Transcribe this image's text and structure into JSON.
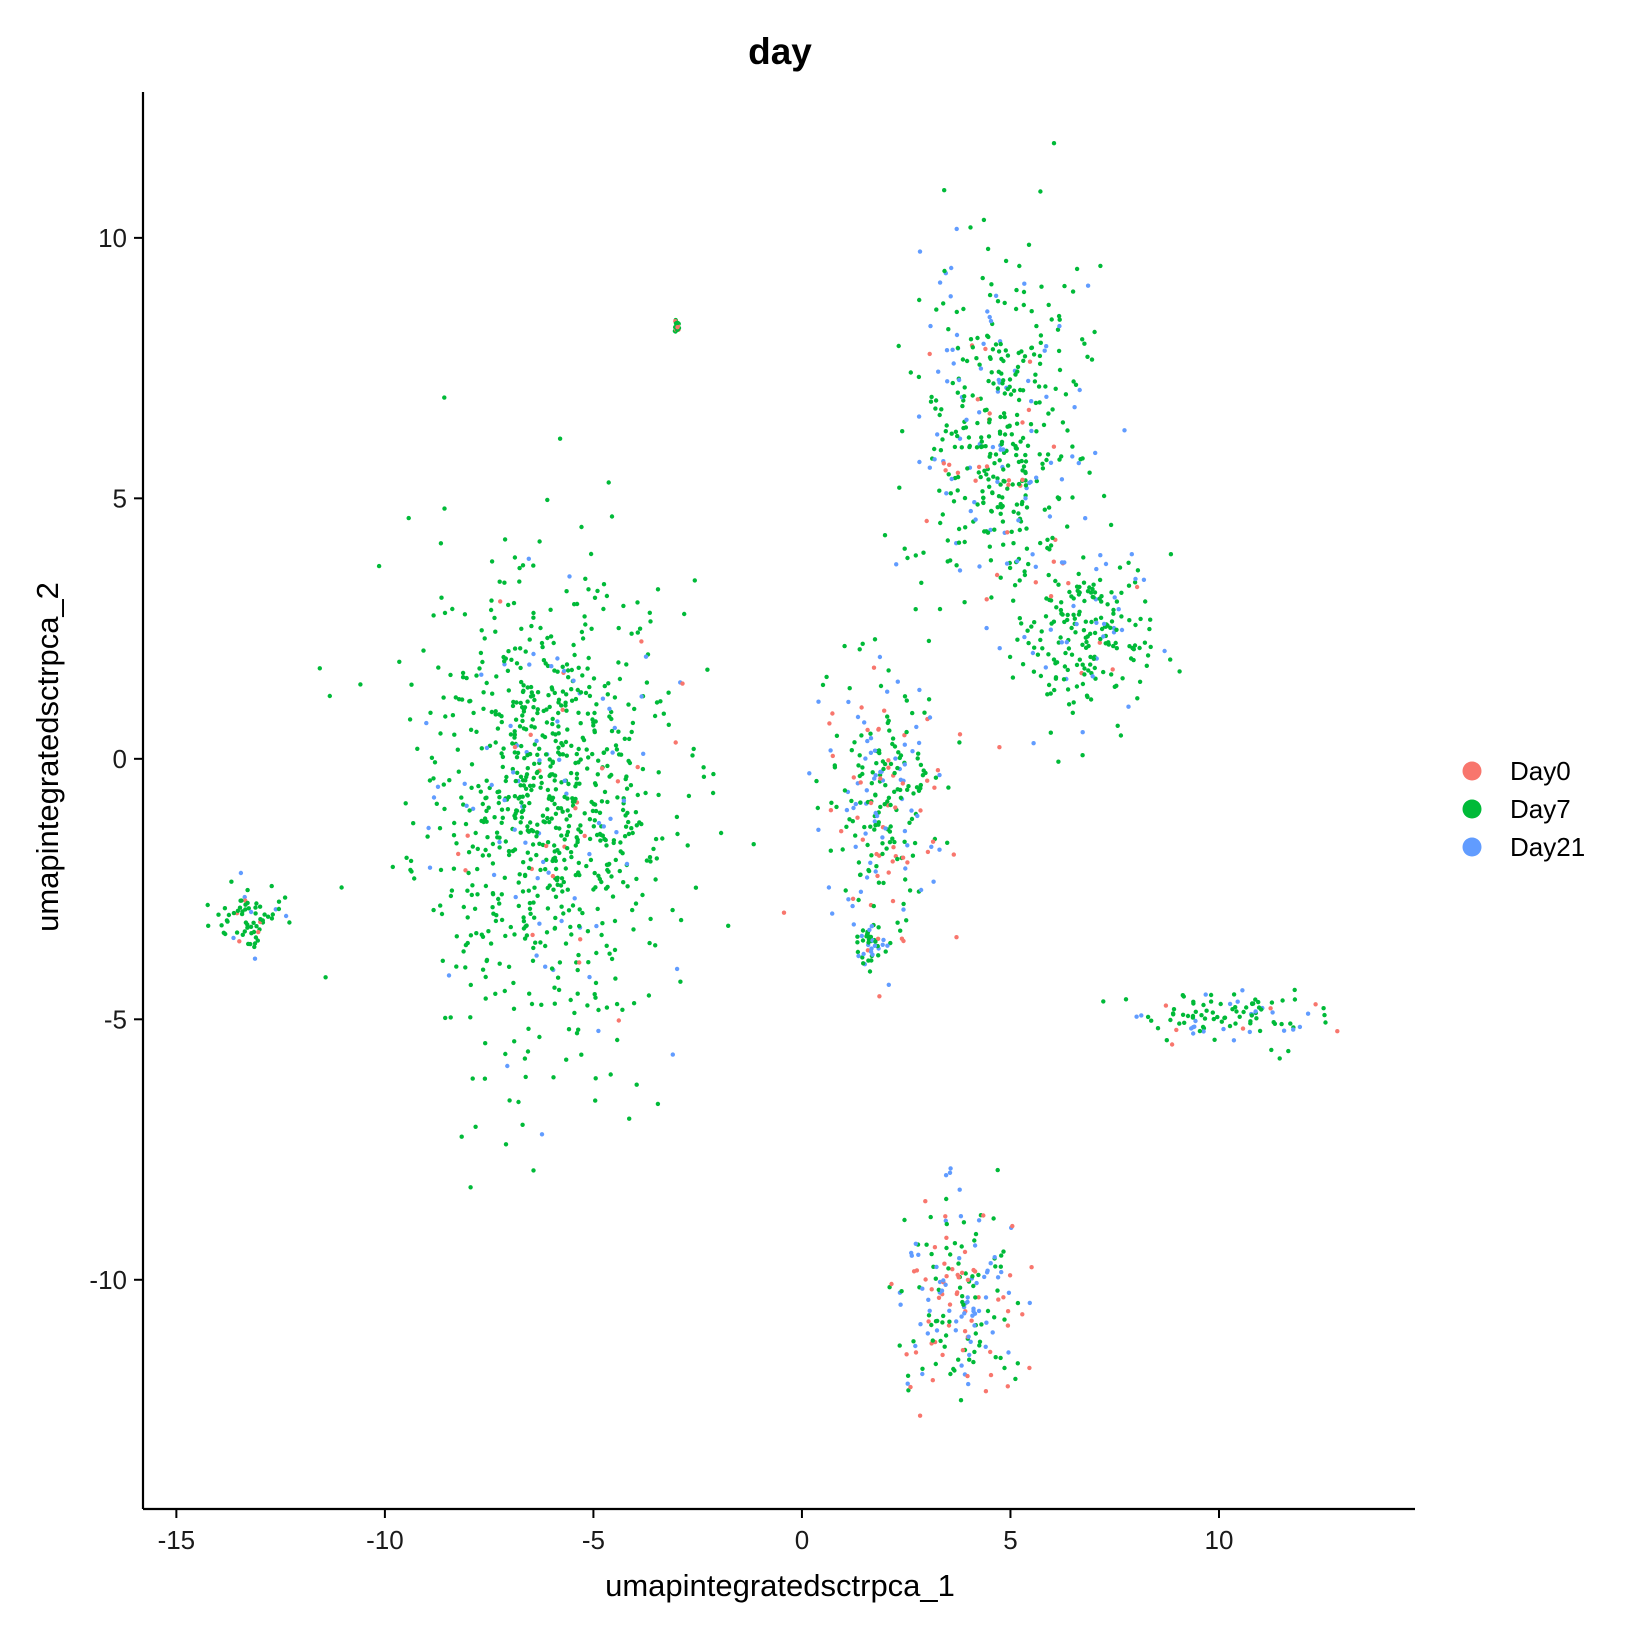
{
  "chart_data": {
    "type": "scatter",
    "title": "day",
    "xlabel": "umapintegratedsctrpca_1",
    "ylabel": "umapintegratedsctrpca_2",
    "xlim": [
      -15.8,
      14.7
    ],
    "ylim": [
      -14.4,
      12.8
    ],
    "x_ticks": [
      -15,
      -10,
      -5,
      0,
      5,
      10
    ],
    "y_ticks": [
      -10,
      -5,
      0,
      5,
      10
    ],
    "x_tick_labels": [
      "-15",
      "-10",
      "-5",
      "0",
      "5",
      "10"
    ],
    "y_tick_labels": [
      "-10",
      "-5",
      "0",
      "5",
      "10"
    ],
    "grid": false,
    "legend_position": "right",
    "series": [
      {
        "name": "Day0",
        "color": "#F8766D"
      },
      {
        "name": "Day7",
        "color": "#00BA38"
      },
      {
        "name": "Day21",
        "color": "#619CFF"
      }
    ],
    "clusters": [
      {
        "id": "left-large",
        "center": [
          -6.2,
          -0.8
        ],
        "spread": [
          2.8,
          4.0
        ],
        "share": [
          0.03,
          0.89,
          0.08
        ]
      },
      {
        "id": "far-left",
        "center": [
          -13.2,
          -3.1
        ],
        "spread": [
          0.8,
          0.6
        ],
        "share": [
          0.05,
          0.85,
          0.1
        ]
      },
      {
        "id": "top-right",
        "center": [
          4.8,
          6.2
        ],
        "spread": [
          1.7,
          3.0
        ],
        "share": [
          0.07,
          0.75,
          0.18
        ]
      },
      {
        "id": "top-right-lower",
        "center": [
          6.8,
          2.4
        ],
        "spread": [
          1.5,
          1.6
        ],
        "share": [
          0.04,
          0.8,
          0.16
        ]
      },
      {
        "id": "middle-bridge",
        "center": [
          2.0,
          -0.8
        ],
        "spread": [
          1.3,
          2.3
        ],
        "share": [
          0.15,
          0.55,
          0.3
        ]
      },
      {
        "id": "small-middle",
        "center": [
          1.6,
          -3.6
        ],
        "spread": [
          0.4,
          0.4
        ],
        "share": [
          0.1,
          0.55,
          0.35
        ]
      },
      {
        "id": "right-band",
        "center": [
          10.3,
          -4.9
        ],
        "spread": [
          1.9,
          0.5
        ],
        "share": [
          0.06,
          0.7,
          0.24
        ]
      },
      {
        "id": "bottom",
        "center": [
          3.8,
          -10.4
        ],
        "spread": [
          1.3,
          1.7
        ],
        "share": [
          0.3,
          0.4,
          0.3
        ]
      },
      {
        "id": "tiny",
        "center": [
          -3.0,
          8.3
        ],
        "spread": [
          0.06,
          0.12
        ],
        "share": [
          0.25,
          0.75,
          0.0
        ]
      }
    ]
  }
}
